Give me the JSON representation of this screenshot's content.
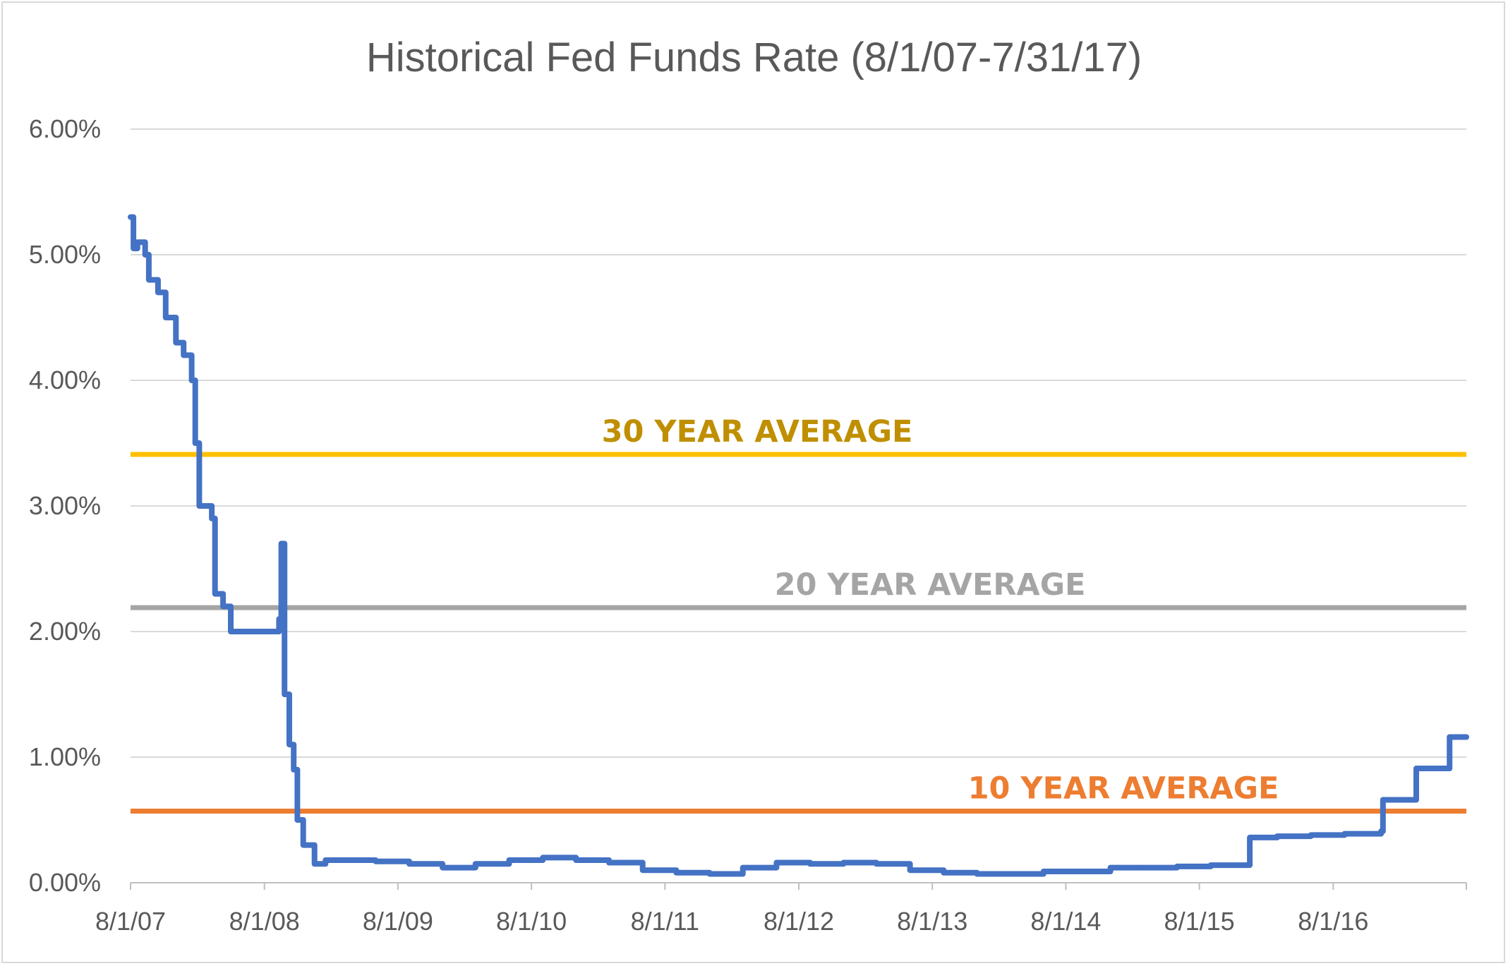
{
  "chart_data": {
    "type": "line",
    "title": "Historical Fed Funds Rate (8/1/07-7/31/17)",
    "xlabel": "",
    "ylabel": "",
    "x_tick_labels": [
      "8/1/07",
      "8/1/08",
      "8/1/09",
      "8/1/10",
      "8/1/11",
      "8/1/12",
      "8/1/13",
      "8/1/14",
      "8/1/15",
      "8/1/16"
    ],
    "y_tick_labels": [
      "0.00%",
      "1.00%",
      "2.00%",
      "3.00%",
      "4.00%",
      "5.00%",
      "6.00%"
    ],
    "xlim": [
      "2007-08-01",
      "2017-07-31"
    ],
    "ylim": [
      0,
      6
    ],
    "grid": true,
    "series": [
      {
        "color": "#4472c4",
        "x": [
          "2007-08-01",
          "2007-08-09",
          "2007-08-20",
          "2007-09-10",
          "2007-09-20",
          "2007-10-15",
          "2007-11-05",
          "2007-12-03",
          "2007-12-24",
          "2008-01-15",
          "2008-01-25",
          "2008-02-05",
          "2008-02-20",
          "2008-03-10",
          "2008-03-19",
          "2008-04-10",
          "2008-05-01",
          "2008-06-15",
          "2008-08-01",
          "2008-09-10",
          "2008-09-16",
          "2008-09-25",
          "2008-10-08",
          "2008-10-20",
          "2008-10-30",
          "2008-11-15",
          "2008-12-16",
          "2009-01-15",
          "2009-03-01",
          "2009-06-01",
          "2009-09-01",
          "2009-12-01",
          "2010-03-01",
          "2010-06-01",
          "2010-09-01",
          "2010-12-01",
          "2011-03-01",
          "2011-06-01",
          "2011-09-01",
          "2011-12-01",
          "2012-03-01",
          "2012-06-01",
          "2012-09-01",
          "2012-12-01",
          "2013-03-01",
          "2013-06-01",
          "2013-09-01",
          "2013-12-01",
          "2014-03-01",
          "2014-06-01",
          "2014-09-01",
          "2014-12-01",
          "2015-03-01",
          "2015-06-01",
          "2015-09-01",
          "2015-12-10",
          "2015-12-17",
          "2016-03-01",
          "2016-06-01",
          "2016-09-01",
          "2016-12-10",
          "2016-12-15",
          "2017-03-10",
          "2017-03-16",
          "2017-06-10",
          "2017-06-15",
          "2017-07-31"
        ],
        "values": [
          5.3,
          5.05,
          5.1,
          5.0,
          4.8,
          4.7,
          4.5,
          4.3,
          4.2,
          4.0,
          3.5,
          3.0,
          3.0,
          2.9,
          2.3,
          2.2,
          2.0,
          2.0,
          2.0,
          2.1,
          2.7,
          1.5,
          1.1,
          0.9,
          0.5,
          0.3,
          0.15,
          0.18,
          0.18,
          0.17,
          0.15,
          0.12,
          0.15,
          0.18,
          0.2,
          0.18,
          0.16,
          0.1,
          0.08,
          0.07,
          0.12,
          0.16,
          0.15,
          0.16,
          0.15,
          0.1,
          0.08,
          0.07,
          0.07,
          0.09,
          0.09,
          0.12,
          0.12,
          0.13,
          0.14,
          0.14,
          0.36,
          0.37,
          0.38,
          0.39,
          0.41,
          0.66,
          0.66,
          0.91,
          0.91,
          1.16,
          1.16
        ]
      }
    ],
    "reference_lines": [
      {
        "label": "30 YEAR AVERAGE",
        "value": 3.41,
        "color": "#ffc000",
        "label_color": "#bf8f00",
        "label_position": "above-left"
      },
      {
        "label": "20 YEAR AVERAGE",
        "value": 2.19,
        "color": "#a5a5a5",
        "label_color": "#a5a5a5",
        "label_position": "above-center"
      },
      {
        "label": "10 YEAR AVERAGE",
        "value": 0.57,
        "color": "#ed7d31",
        "label_color": "#ed7d31",
        "label_position": "above-right"
      }
    ]
  }
}
